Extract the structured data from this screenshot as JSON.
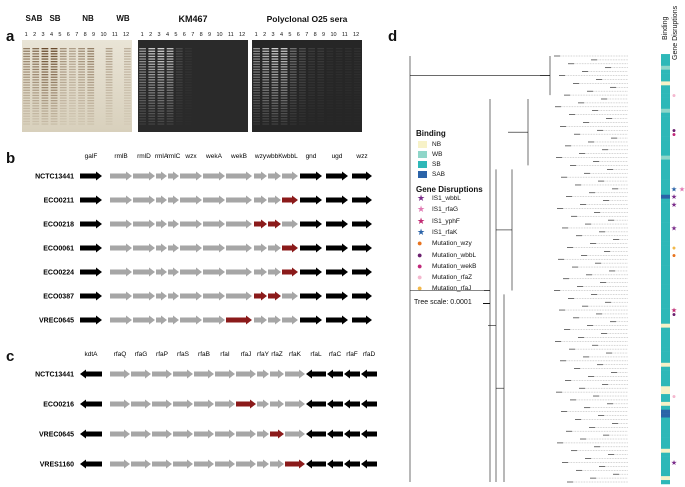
{
  "panels": {
    "a": "a",
    "b": "b",
    "c": "c",
    "d": "d"
  },
  "panel_a": {
    "silver_groups": [
      "SAB",
      "SB",
      "NB",
      "WB"
    ],
    "silver_lanes": [
      "1",
      "2",
      "3",
      "4",
      "5",
      "6",
      "7",
      "8",
      "9",
      "10",
      "11",
      "12"
    ],
    "km467_title": "KM467",
    "km467_lanes": [
      "1",
      "2",
      "3",
      "4",
      "5",
      "6",
      "7",
      "8",
      "9",
      "10",
      "11",
      "12"
    ],
    "serum_title": "Polyclonal O25 sera",
    "serum_lanes": [
      "1",
      "2",
      "3",
      "4",
      "5",
      "6",
      "7",
      "8",
      "9",
      "10",
      "11",
      "12"
    ]
  },
  "panel_b": {
    "genes": [
      "galF",
      "rmlB",
      "rmlD",
      "rmlA",
      "rmlC",
      "wzx",
      "wekA",
      "wekB",
      "wzy",
      "wbbK",
      "wbbL",
      "gnd",
      "ugd",
      "wzz"
    ],
    "strains": [
      {
        "name": "NCTC13441",
        "mutated": []
      },
      {
        "name": "ECO0211",
        "mutated": [
          "wbbL"
        ]
      },
      {
        "name": "ECO0218",
        "mutated": [
          "wzy",
          "wbbK"
        ]
      },
      {
        "name": "ECO0061",
        "mutated": [
          "wbbL"
        ]
      },
      {
        "name": "ECO0224",
        "mutated": [
          "wbbL"
        ]
      },
      {
        "name": "ECO0387",
        "mutated": [
          "wzy",
          "wbbK"
        ]
      },
      {
        "name": "VREC0645",
        "mutated": [
          "wekB"
        ]
      }
    ]
  },
  "panel_c": {
    "genes": [
      "kdtA",
      "rfaQ",
      "rfaG",
      "rfaP",
      "rfaS",
      "rfaB",
      "rfaI",
      "rfaJ",
      "rfaY",
      "rfaZ",
      "rfaK",
      "rfaL",
      "rfaC",
      "rfaF",
      "rfaD"
    ],
    "strains": [
      {
        "name": "NCTC13441",
        "mutated": []
      },
      {
        "name": "ECO0216",
        "mutated": [
          "rfaJ"
        ]
      },
      {
        "name": "VREC0645",
        "mutated": [
          "rfaZ"
        ]
      },
      {
        "name": "VRES1160",
        "mutated": [
          "rfaK"
        ]
      }
    ]
  },
  "panel_d": {
    "column_headers": [
      "Binding",
      "Gene Disruptions"
    ],
    "binding_title": "Binding",
    "binding_legend": [
      {
        "label": "NB",
        "color": "#f7f2c8"
      },
      {
        "label": "WB",
        "color": "#8fd6c9"
      },
      {
        "label": "SB",
        "color": "#2eb8b8"
      },
      {
        "label": "SAB",
        "color": "#2b63a8"
      }
    ],
    "disruption_title": "Gene Disruptions",
    "disruption_legend": [
      {
        "label": "IS1_wbbL",
        "color": "#7a2c8a",
        "shape": "star"
      },
      {
        "label": "IS1_rfaG",
        "color": "#e07ab3",
        "shape": "star"
      },
      {
        "label": "IS1_yphF",
        "color": "#c02a72",
        "shape": "star"
      },
      {
        "label": "IS1_rfaK",
        "color": "#2b63a8",
        "shape": "star"
      },
      {
        "label": "Mutation_wzy",
        "color": "#e8731e",
        "shape": "circle"
      },
      {
        "label": "Mutation_wbbL",
        "color": "#6a1f6e",
        "shape": "circle"
      },
      {
        "label": "Mutation_wekB",
        "color": "#c0287a",
        "shape": "circle"
      },
      {
        "label": "Mutation_rfaZ",
        "color": "#f4b8cf",
        "shape": "circle"
      },
      {
        "label": "Mutation_rfaJ",
        "color": "#f2b84b",
        "shape": "circle"
      }
    ],
    "tree_scale": "Tree scale: 0.0001"
  },
  "colors": {
    "wildtype": "#000000",
    "gene": "#a6a6a6",
    "mutated": "#8b1a1a"
  }
}
